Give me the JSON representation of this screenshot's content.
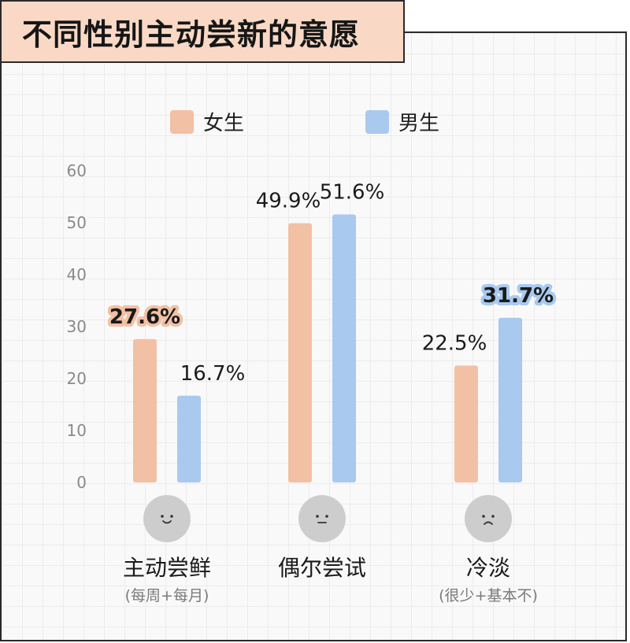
{
  "title": "不同性别主动尝新的意愿",
  "chart_data": {
    "type": "bar",
    "categories": [
      "主动尝鲜",
      "偶尔尝试",
      "冷淡"
    ],
    "category_notes": [
      "(每周+每月)",
      "",
      "(很少+基本不)"
    ],
    "category_icons": [
      "smile-face-icon",
      "neutral-face-icon",
      "sad-face-icon"
    ],
    "series": [
      {
        "name": "女生",
        "values": [
          27.6,
          49.9,
          22.5
        ],
        "labels": [
          "27.6%",
          "49.9%",
          "22.5%"
        ],
        "color": "#f2c0a4",
        "highlight": [
          true,
          false,
          false
        ]
      },
      {
        "name": "男生",
        "values": [
          16.7,
          51.6,
          31.7
        ],
        "labels": [
          "16.7%",
          "51.6%",
          "31.7%"
        ],
        "color": "#a9c9ef",
        "highlight": [
          false,
          false,
          true
        ]
      }
    ],
    "ylim": [
      0,
      60
    ],
    "yticks": [
      0,
      10,
      20,
      30,
      40,
      50,
      60
    ],
    "xlabel": "",
    "ylabel": "",
    "legend_position": "top",
    "grid": true,
    "icon_color": "#cdcdcd"
  }
}
